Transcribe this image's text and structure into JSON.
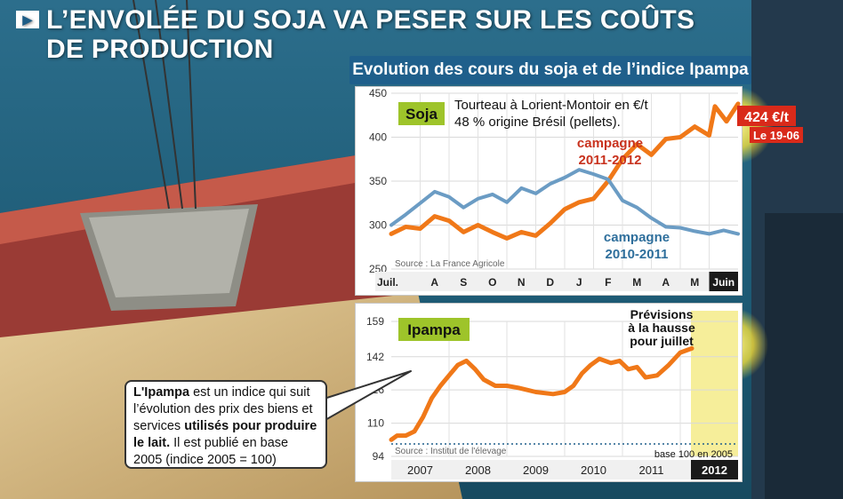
{
  "headline": {
    "line1": "L’ENVOLÉE DU SOJA VA PESER SUR LES COÛTS",
    "line2": "DE PRODUCTION"
  },
  "panel_title": "Evolution des cours du soja et de l’indice Ipampa",
  "callout": {
    "term": "L'Ipampa",
    "text1": " est un indice qui suit l’évolution des prix des biens et services ",
    "bold": "utilisés pour produire le lait.",
    "text2": " Il est publié en base 2005 (indice 2005 = 100)"
  },
  "chart_data": [
    {
      "type": "line",
      "tag": "Soja",
      "subtitle_line1": "Tourteau à Lorient-Montoir en  €/t",
      "subtitle_line2": "48 % origine Brésil (pellets).",
      "source": "Source : La France Agricole",
      "categories": [
        "Juil.",
        "A",
        "S",
        "O",
        "N",
        "D",
        "J",
        "F",
        "M",
        "A",
        "M",
        "Juin"
      ],
      "yticks": [
        250,
        300,
        350,
        400,
        450
      ],
      "ylim": [
        250,
        450
      ],
      "series": [
        {
          "name": "campagne",
          "name_line2": "2011-2012",
          "color": "#f07818",
          "x": [
            0,
            0.5,
            1,
            1.5,
            2,
            2.5,
            3,
            3.5,
            4,
            4.5,
            5,
            5.5,
            6,
            6.5,
            7,
            7.5,
            8,
            8.5,
            9,
            9.5,
            10,
            10.5,
            11,
            11.2,
            11.6,
            12
          ],
          "values": [
            290,
            298,
            296,
            310,
            305,
            292,
            300,
            292,
            285,
            292,
            288,
            302,
            318,
            326,
            330,
            350,
            375,
            392,
            380,
            398,
            400,
            412,
            402,
            435,
            418,
            438
          ]
        },
        {
          "name": "campagne",
          "name_line2": "2010-2011",
          "color": "#6b9cc4",
          "x": [
            0,
            0.5,
            1,
            1.5,
            2,
            2.5,
            3,
            3.5,
            4,
            4.5,
            5,
            5.5,
            6,
            6.5,
            7,
            7.5,
            8,
            8.5,
            9,
            9.5,
            10,
            10.5,
            11,
            11.5,
            12
          ],
          "values": [
            300,
            312,
            325,
            338,
            332,
            320,
            330,
            335,
            326,
            342,
            336,
            347,
            354,
            363,
            358,
            352,
            328,
            320,
            308,
            298,
            297,
            293,
            290,
            294,
            290
          ]
        }
      ],
      "annotation": {
        "value": "424 €/t",
        "date": "Le 19-06"
      }
    },
    {
      "type": "line",
      "tag": "Ipampa",
      "source": "Source : Institut de l'élevage",
      "categories": [
        "2007",
        "2008",
        "2009",
        "2010",
        "2011",
        "2012"
      ],
      "yticks": [
        94,
        110,
        126,
        142,
        159
      ],
      "ylim": [
        94,
        159
      ],
      "base_label": "base 100 en 2005",
      "base_value": 100,
      "forecast": [
        "Prévisions",
        "à la hausse",
        "pour juillet"
      ],
      "series": [
        {
          "color": "#f07818",
          "x": [
            0,
            0.1,
            0.25,
            0.4,
            0.55,
            0.7,
            0.85,
            1.0,
            1.15,
            1.3,
            1.45,
            1.6,
            1.8,
            2.0,
            2.2,
            2.5,
            2.8,
            3.0,
            3.15,
            3.3,
            3.45,
            3.6,
            3.8,
            3.95,
            4.1,
            4.25,
            4.4,
            4.6,
            4.8,
            5.0,
            5.2
          ],
          "values": [
            102,
            104,
            104,
            106,
            113,
            122,
            128,
            133,
            138,
            140,
            136,
            131,
            128,
            128,
            127,
            125,
            124,
            125,
            128,
            134,
            138,
            141,
            139,
            140,
            136,
            137,
            132,
            133,
            138,
            144,
            146
          ]
        }
      ]
    }
  ]
}
